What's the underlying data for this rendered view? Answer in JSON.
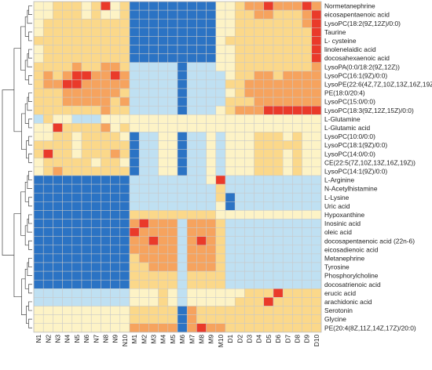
{
  "chart_data": {
    "type": "heatmap",
    "title": "",
    "xlabel": "",
    "ylabel": "",
    "color_scale": [
      "#2b73c4",
      "#6aaee0",
      "#bfe0f2",
      "#fdf3c6",
      "#fbd88a",
      "#f6a35e",
      "#ea3a2a"
    ],
    "value_range": [
      -3,
      3
    ],
    "grid": true,
    "dendrogram": "left",
    "columns": [
      "N1",
      "N2",
      "N3",
      "N4",
      "N5",
      "N6",
      "N7",
      "N8",
      "N9",
      "N10",
      "M1",
      "M2",
      "M3",
      "M4",
      "M5",
      "M6",
      "M7",
      "M8",
      "M9",
      "M10",
      "D1",
      "D2",
      "D3",
      "D4",
      "D5",
      "D6",
      "D7",
      "D8",
      "D9",
      "D10"
    ],
    "rows": [
      "Normetanephrine",
      "eicosapentaenoic acid",
      "LysoPC(18:2(9Z,12Z)/0:0)",
      "Taurine",
      "L- cysteine",
      "linolenelaidic acid",
      "docosahexaenoic acid",
      "LysoPA(0:0/18:2(9Z,12Z))",
      "LysoPC(16:1(9Z)/0:0)",
      "LysoPE(22:6(4Z,7Z,10Z,13Z,16Z,19Z)/0:0)",
      "PE(18:0/20:4)",
      "LysoPC(15:0/0:0)",
      "LysoPC(18:3(9Z,12Z,15Z)/0:0)",
      "L-Glutamine",
      "L-Glutamic acid",
      "LysoPC(10:0/0:0)",
      "LysoPC(18:1(9Z)/0:0)",
      "LysoPC(14:0/0:0)",
      "CE(22:5(7Z,10Z,13Z,16Z,19Z))",
      "LysoPC(14:1(9Z)/0:0)",
      "L-Arginine",
      "N-Acetylhistamine",
      "L-Lysine",
      "Uric acid",
      "Hypoxanthine",
      "Inosinic acid",
      "oleic acid",
      "docosapentaenoic acid (22n-6)",
      "eicosadienoic acid",
      "Metanephrine",
      "Tyrosine",
      "Phosphorylcholine",
      "docosatrienoic acid",
      "erucic acid",
      "arachidonic acid",
      "Serotonin",
      "Glycine",
      "PE(20:4(8Z,11Z,14Z,17Z)/20:0)"
    ],
    "values": [
      [
        0,
        0,
        1,
        1,
        1,
        0,
        1,
        3,
        0,
        1,
        -3,
        -3,
        -3,
        -3,
        -3,
        -3,
        -3,
        -3,
        -3,
        0,
        0,
        1,
        2,
        2,
        3,
        2,
        2,
        2,
        3,
        2
      ],
      [
        0,
        0,
        1,
        1,
        1,
        0,
        1,
        0,
        0,
        1,
        -3,
        -3,
        -3,
        -3,
        -3,
        -3,
        -3,
        -3,
        -3,
        0,
        0,
        1,
        1,
        2,
        2,
        1,
        1,
        1,
        2,
        3
      ],
      [
        0,
        1,
        1,
        1,
        1,
        1,
        1,
        1,
        1,
        1,
        -3,
        -3,
        -3,
        -3,
        -3,
        -3,
        -3,
        -3,
        -3,
        0,
        0,
        1,
        1,
        1,
        1,
        1,
        1,
        1,
        2,
        3
      ],
      [
        0,
        1,
        1,
        1,
        1,
        1,
        1,
        1,
        1,
        1,
        -3,
        -3,
        -3,
        -3,
        -3,
        -3,
        -3,
        -3,
        -3,
        0,
        0,
        1,
        1,
        1,
        1,
        1,
        1,
        1,
        1,
        3
      ],
      [
        1,
        1,
        1,
        1,
        1,
        1,
        1,
        1,
        1,
        1,
        -3,
        -3,
        -3,
        -3,
        -3,
        -3,
        -3,
        -3,
        -3,
        0,
        1,
        1,
        1,
        1,
        1,
        1,
        1,
        1,
        1,
        3
      ],
      [
        0,
        1,
        1,
        1,
        1,
        1,
        1,
        1,
        1,
        1,
        -3,
        -3,
        -3,
        -3,
        -3,
        -3,
        -3,
        -3,
        -3,
        0,
        0,
        1,
        1,
        1,
        1,
        1,
        1,
        1,
        1,
        3
      ],
      [
        0,
        1,
        1,
        1,
        1,
        1,
        1,
        1,
        1,
        1,
        -3,
        -3,
        -3,
        -3,
        -3,
        -3,
        -3,
        -3,
        -3,
        0,
        0,
        1,
        1,
        1,
        1,
        1,
        1,
        1,
        1,
        3
      ],
      [
        1,
        1,
        1,
        1,
        2,
        1,
        1,
        2,
        2,
        1,
        -1,
        -1,
        -1,
        -1,
        -1,
        -3,
        -1,
        -1,
        -1,
        0,
        0,
        1,
        1,
        1,
        1,
        1,
        1,
        1,
        1,
        2
      ],
      [
        1,
        2,
        1,
        2,
        3,
        3,
        2,
        2,
        3,
        2,
        -1,
        -1,
        -1,
        -1,
        -1,
        -3,
        -1,
        -1,
        -1,
        -1,
        0,
        1,
        1,
        2,
        2,
        1,
        2,
        2,
        2,
        2
      ],
      [
        1,
        2,
        2,
        3,
        3,
        2,
        2,
        2,
        2,
        2,
        -1,
        -1,
        -1,
        -1,
        -1,
        -3,
        -1,
        -1,
        -1,
        -1,
        1,
        1,
        2,
        2,
        2,
        2,
        2,
        2,
        2,
        2
      ],
      [
        1,
        1,
        1,
        2,
        2,
        2,
        2,
        2,
        2,
        1,
        -1,
        -1,
        -1,
        -1,
        -1,
        -3,
        -1,
        -1,
        -1,
        -1,
        0,
        1,
        2,
        2,
        2,
        2,
        2,
        2,
        2,
        2
      ],
      [
        1,
        1,
        1,
        2,
        2,
        2,
        2,
        2,
        1,
        2,
        -1,
        -1,
        -1,
        -1,
        -1,
        -3,
        -1,
        -1,
        -1,
        -1,
        1,
        1,
        1,
        2,
        2,
        2,
        2,
        2,
        2,
        2
      ],
      [
        1,
        1,
        1,
        1,
        1,
        1,
        1,
        2,
        1,
        1,
        -1,
        -1,
        -1,
        -1,
        -1,
        -3,
        -1,
        -1,
        -1,
        0,
        1,
        2,
        2,
        2,
        3,
        3,
        3,
        3,
        3,
        3
      ],
      [
        -1,
        1,
        0,
        0,
        -1,
        -1,
        -1,
        0,
        0,
        0,
        0,
        0,
        0,
        0,
        0,
        0,
        0,
        0,
        0,
        0,
        0,
        0,
        0,
        0,
        0,
        0,
        0,
        0,
        0,
        0
      ],
      [
        0,
        0,
        3,
        1,
        1,
        1,
        1,
        2,
        0,
        1,
        0,
        0,
        0,
        0,
        0,
        0,
        0,
        0,
        0,
        0,
        0,
        0,
        0,
        0,
        0,
        0,
        0,
        0,
        0,
        0
      ],
      [
        0,
        0,
        1,
        1,
        0,
        1,
        1,
        1,
        1,
        0,
        -3,
        -1,
        -1,
        0,
        0,
        -3,
        -1,
        -1,
        0,
        -1,
        0,
        0,
        0,
        1,
        1,
        1,
        0,
        1,
        0,
        0
      ],
      [
        1,
        1,
        1,
        1,
        0,
        1,
        1,
        1,
        1,
        1,
        -3,
        -1,
        -1,
        0,
        0,
        -3,
        -1,
        -1,
        0,
        -1,
        0,
        0,
        0,
        1,
        1,
        1,
        1,
        1,
        0,
        0
      ],
      [
        1,
        3,
        1,
        1,
        0,
        1,
        1,
        1,
        2,
        1,
        -3,
        -1,
        -1,
        0,
        0,
        -3,
        -1,
        -1,
        0,
        -1,
        0,
        0,
        0,
        1,
        1,
        1,
        0,
        1,
        0,
        0
      ],
      [
        0,
        1,
        1,
        1,
        1,
        1,
        0,
        1,
        1,
        0,
        -3,
        -1,
        -1,
        0,
        0,
        -3,
        -1,
        -1,
        0,
        -1,
        0,
        0,
        0,
        1,
        1,
        1,
        0,
        1,
        0,
        0
      ],
      [
        0,
        1,
        2,
        1,
        1,
        1,
        1,
        1,
        1,
        1,
        -3,
        -1,
        -1,
        0,
        0,
        -3,
        -1,
        -1,
        0,
        -1,
        0,
        0,
        0,
        1,
        1,
        1,
        0,
        1,
        0,
        0
      ],
      [
        -3,
        -3,
        -3,
        -3,
        -3,
        -3,
        -3,
        -3,
        -3,
        -3,
        -1,
        -1,
        -1,
        -1,
        -1,
        -1,
        -1,
        -1,
        0,
        3,
        -1,
        -1,
        -1,
        -1,
        -1,
        -1,
        -1,
        -1,
        -1,
        -1
      ],
      [
        -3,
        -3,
        -3,
        -3,
        -3,
        -3,
        -3,
        -3,
        -3,
        -3,
        -1,
        -1,
        -1,
        -1,
        -1,
        -1,
        -1,
        -1,
        -1,
        1,
        -1,
        -1,
        -1,
        -1,
        -1,
        -1,
        -1,
        -1,
        -1,
        -1
      ],
      [
        -3,
        -3,
        -3,
        -3,
        -3,
        -3,
        -3,
        -3,
        -3,
        -3,
        -1,
        -1,
        -1,
        -1,
        -1,
        -1,
        -1,
        -1,
        -1,
        1,
        -3,
        -1,
        -1,
        -1,
        -1,
        -1,
        -1,
        -1,
        -1,
        -1
      ],
      [
        -3,
        -3,
        -3,
        -3,
        -3,
        -3,
        -3,
        -3,
        -3,
        -3,
        -1,
        -1,
        -1,
        -1,
        -1,
        -1,
        -1,
        -1,
        -1,
        0,
        -3,
        -1,
        -1,
        -1,
        -1,
        -1,
        -1,
        -1,
        -1,
        -1
      ],
      [
        -3,
        -3,
        -3,
        -3,
        -3,
        -3,
        -3,
        -3,
        -3,
        -3,
        1,
        1,
        1,
        1,
        1,
        1,
        1,
        1,
        1,
        0,
        0,
        0,
        0,
        0,
        0,
        0,
        0,
        0,
        0,
        0
      ],
      [
        -3,
        -3,
        -3,
        -3,
        -3,
        -3,
        -3,
        -3,
        -3,
        -3,
        2,
        3,
        2,
        2,
        2,
        -1,
        2,
        2,
        2,
        1,
        -1,
        -1,
        -1,
        -1,
        -1,
        -1,
        -1,
        -1,
        -1,
        -1
      ],
      [
        -3,
        -3,
        -3,
        -3,
        -3,
        -3,
        -3,
        -3,
        -3,
        -3,
        3,
        2,
        2,
        2,
        2,
        -1,
        2,
        2,
        2,
        1,
        -1,
        -1,
        -1,
        -1,
        -1,
        -1,
        -1,
        -1,
        -1,
        -1
      ],
      [
        -3,
        -3,
        -3,
        -3,
        -3,
        -3,
        -3,
        -3,
        -3,
        -3,
        2,
        2,
        3,
        2,
        2,
        -1,
        2,
        3,
        2,
        1,
        -1,
        -1,
        -1,
        -1,
        -1,
        -1,
        -1,
        -1,
        -1,
        -1
      ],
      [
        -3,
        -3,
        -3,
        -3,
        -3,
        -3,
        -3,
        -3,
        -3,
        -3,
        2,
        2,
        2,
        2,
        2,
        -1,
        2,
        2,
        2,
        1,
        -1,
        -1,
        -1,
        -1,
        -1,
        -1,
        -1,
        -1,
        -1,
        -1
      ],
      [
        -3,
        -3,
        -3,
        -3,
        -3,
        -3,
        -3,
        -3,
        -3,
        -3,
        1,
        2,
        2,
        2,
        2,
        -1,
        2,
        2,
        2,
        1,
        -1,
        -1,
        -1,
        -1,
        -1,
        -1,
        -1,
        -1,
        -1,
        -1
      ],
      [
        -3,
        -3,
        -3,
        -3,
        -3,
        -3,
        -3,
        -3,
        -3,
        -3,
        1,
        1,
        2,
        2,
        2,
        -1,
        2,
        2,
        2,
        1,
        -1,
        -1,
        -1,
        -1,
        -1,
        -1,
        -1,
        -1,
        -1,
        -1
      ],
      [
        -3,
        -3,
        -3,
        -3,
        -3,
        -3,
        -3,
        -3,
        -3,
        -3,
        1,
        1,
        1,
        1,
        1,
        -1,
        1,
        1,
        1,
        1,
        -1,
        -1,
        -1,
        -1,
        -1,
        -1,
        -1,
        -1,
        -1,
        -1
      ],
      [
        -3,
        -3,
        -3,
        -3,
        -3,
        -3,
        -3,
        -3,
        -3,
        -3,
        1,
        1,
        1,
        1,
        1,
        -1,
        1,
        1,
        1,
        1,
        -1,
        -1,
        -1,
        -1,
        -1,
        -1,
        -1,
        -1,
        -1,
        -1
      ],
      [
        -1,
        -1,
        -1,
        -1,
        -1,
        -1,
        -1,
        -1,
        -1,
        -1,
        0,
        0,
        0,
        1,
        0,
        -1,
        0,
        0,
        0,
        0,
        0,
        0,
        1,
        1,
        1,
        3,
        1,
        1,
        1,
        1
      ],
      [
        -1,
        -1,
        -1,
        -1,
        -1,
        -1,
        -1,
        -1,
        -1,
        -1,
        0,
        0,
        0,
        1,
        0,
        -1,
        0,
        0,
        0,
        0,
        0,
        1,
        1,
        1,
        3,
        1,
        1,
        1,
        1,
        1
      ],
      [
        0,
        0,
        0,
        0,
        0,
        0,
        0,
        0,
        0,
        0,
        1,
        1,
        1,
        1,
        1,
        -3,
        2,
        1,
        1,
        1,
        1,
        1,
        1,
        1,
        1,
        1,
        1,
        1,
        1,
        1
      ],
      [
        0,
        0,
        0,
        0,
        0,
        0,
        0,
        0,
        0,
        0,
        1,
        1,
        1,
        1,
        1,
        -3,
        2,
        1,
        1,
        1,
        1,
        1,
        1,
        1,
        1,
        1,
        1,
        1,
        1,
        1
      ],
      [
        0,
        0,
        0,
        0,
        0,
        0,
        0,
        0,
        0,
        0,
        2,
        2,
        2,
        2,
        2,
        -3,
        2,
        3,
        2,
        2,
        1,
        1,
        1,
        1,
        1,
        1,
        1,
        1,
        1,
        1
      ]
    ]
  }
}
